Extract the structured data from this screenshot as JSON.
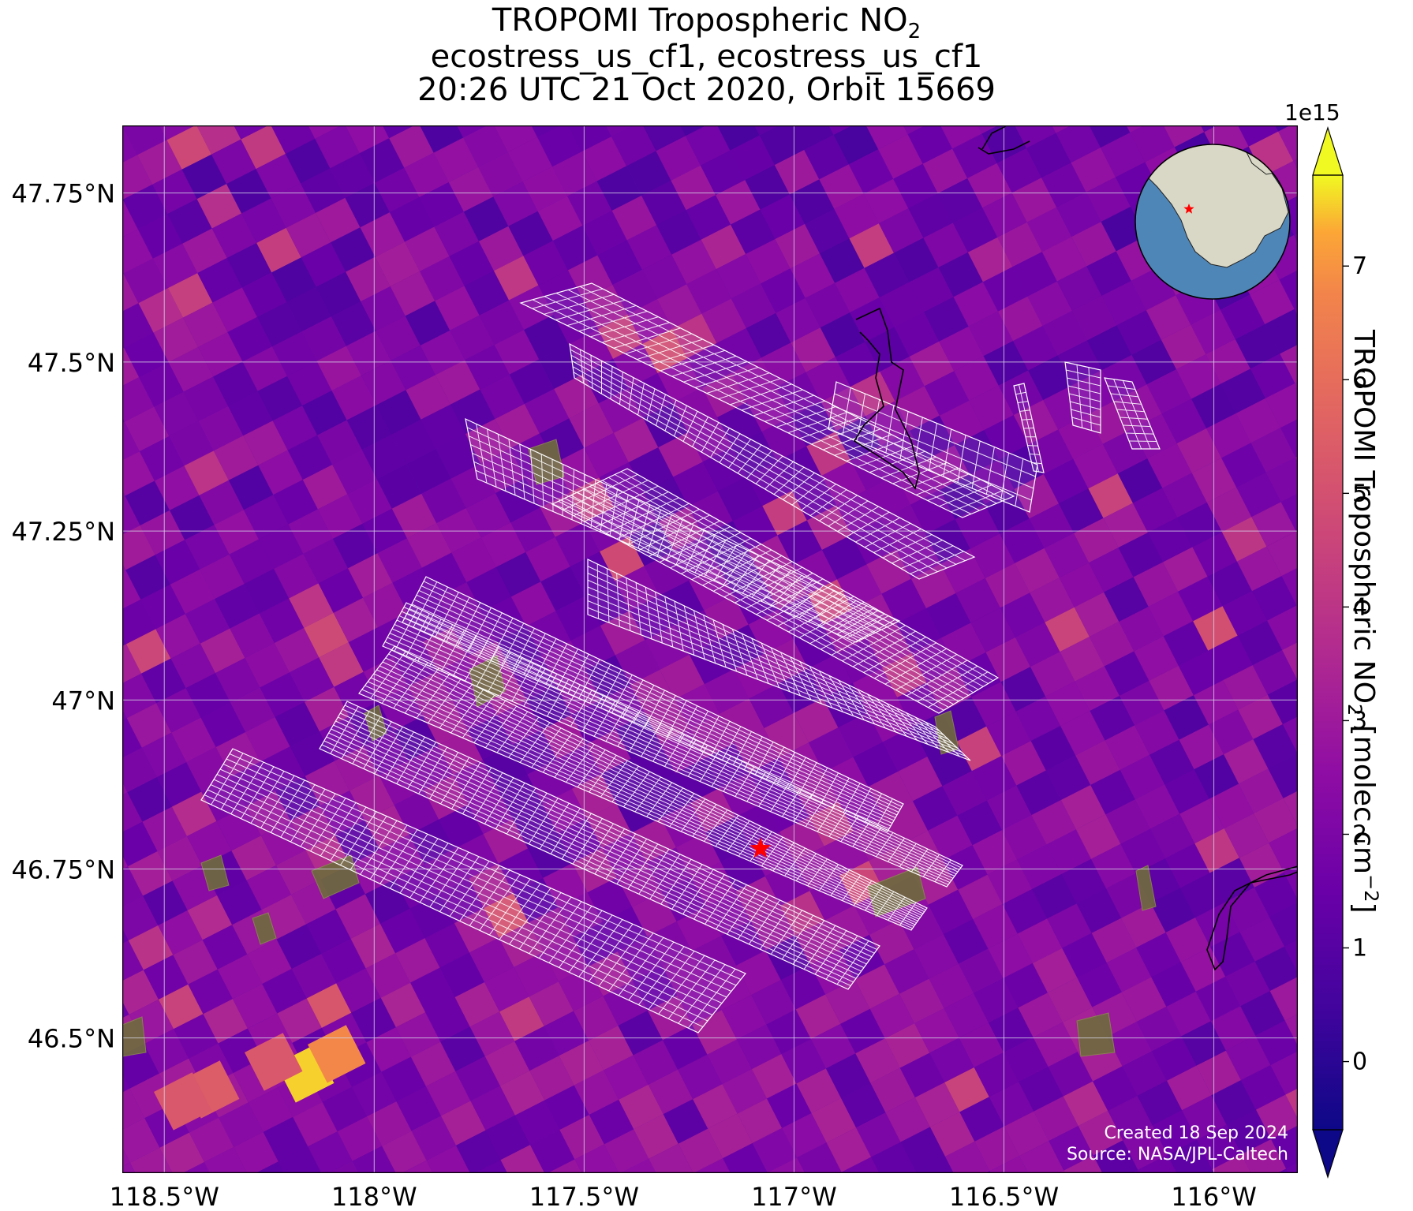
{
  "title": {
    "line1_prefix": "TROPOMI Tropospheric NO",
    "line1_sub": "2",
    "line2": "ecostress_us_cf1, ecostress_us_cf1",
    "line3": "20:26 UTC 21 Oct 2020, Orbit 15669"
  },
  "map": {
    "lon_range": [
      -118.6,
      -115.8
    ],
    "lat_range": [
      46.3,
      47.85
    ],
    "lon_ticks": [
      {
        "value": -118.5,
        "label": "118.5°W"
      },
      {
        "value": -118.0,
        "label": "118°W"
      },
      {
        "value": -117.5,
        "label": "117.5°W"
      },
      {
        "value": -117.0,
        "label": "117°W"
      },
      {
        "value": -116.5,
        "label": "116.5°W"
      },
      {
        "value": -116.0,
        "label": "116°W"
      }
    ],
    "lat_ticks": [
      {
        "value": 47.75,
        "label": "47.75°N"
      },
      {
        "value": 47.5,
        "label": "47.5°N"
      },
      {
        "value": 47.25,
        "label": "47.25°N"
      },
      {
        "value": 47.0,
        "label": "47°N"
      },
      {
        "value": 46.75,
        "label": "46.75°N"
      },
      {
        "value": 46.5,
        "label": "46.5°N"
      }
    ],
    "target": {
      "lon": -117.08,
      "lat": 46.78,
      "color": "#ff0000"
    },
    "grid": true
  },
  "colorbar": {
    "label_prefix": "TROPOMI Tropospheric NO",
    "label_sub": "2",
    "label_suffix": " [molec cm",
    "label_sup": "−2",
    "label_close": "]",
    "multiplier": "1e15",
    "range": [
      -0.6,
      7.8
    ],
    "extend": "both",
    "colormap": "plasma",
    "ticks": [
      {
        "value": 0,
        "label": "0"
      },
      {
        "value": 1,
        "label": "1"
      },
      {
        "value": 2,
        "label": "2"
      },
      {
        "value": 3,
        "label": "3"
      },
      {
        "value": 4,
        "label": "4"
      },
      {
        "value": 5,
        "label": "5"
      },
      {
        "value": 6,
        "label": "6"
      },
      {
        "value": 7,
        "label": "7"
      }
    ]
  },
  "credits": {
    "created": "Created 18 Sep 2024",
    "source": "Source: NASA/JPL-Caltech"
  },
  "inset_globe": {
    "ocean_color": "#4f86b8",
    "land_color": "#d9d8c6",
    "marker_color": "#ff0000"
  }
}
